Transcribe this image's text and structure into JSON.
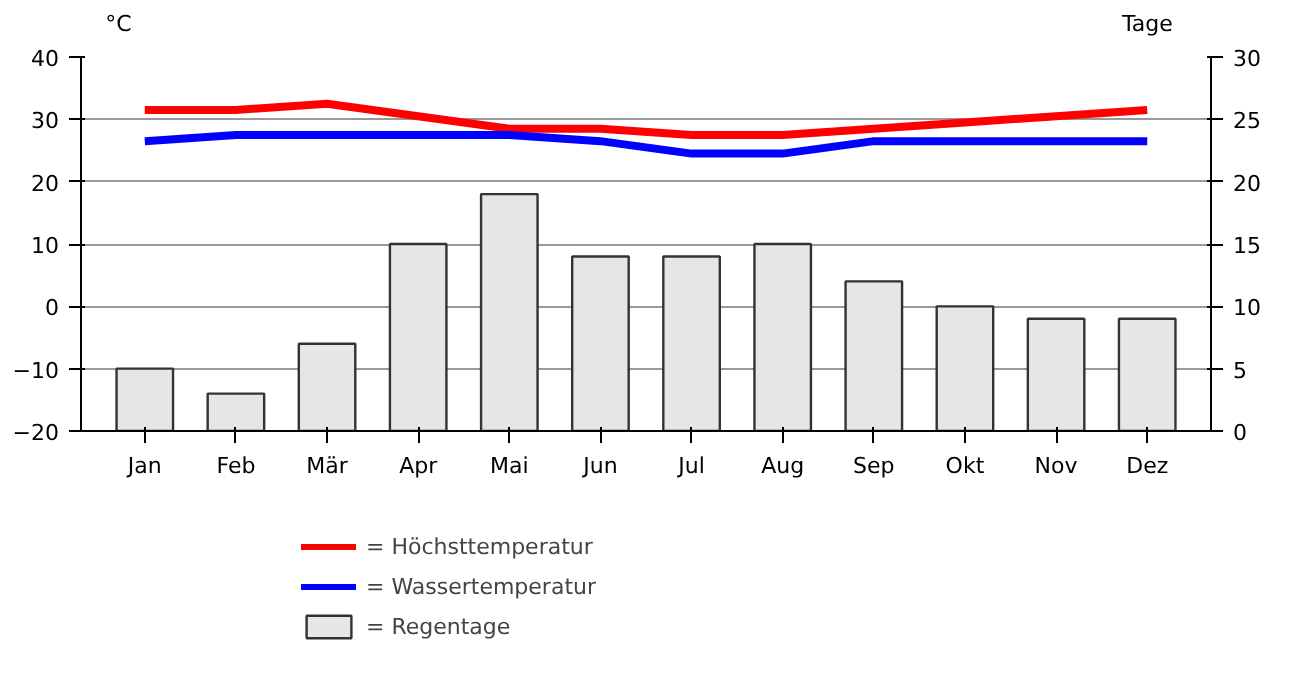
{
  "chart_data": {
    "type": "bar",
    "ylabel": "°C",
    "y2label": "Tage",
    "categories": [
      "Jan",
      "Feb",
      "Mär",
      "Apr",
      "Mai",
      "Jun",
      "Jul",
      "Aug",
      "Sep",
      "Okt",
      "Nov",
      "Dez"
    ],
    "series": [
      {
        "name": "= Höchsttemperatur",
        "type": "line",
        "color": "#ff0000",
        "values": [
          31.5,
          31.5,
          32.5,
          30.5,
          28.5,
          28.5,
          27.5,
          27.5,
          28.5,
          29.5,
          30.5,
          31.5
        ]
      },
      {
        "name": "= Wassertemperatur",
        "type": "line",
        "color": "#0000ff",
        "values": [
          26.5,
          27.5,
          27.5,
          27.5,
          27.5,
          26.5,
          24.5,
          24.5,
          26.5,
          26.5,
          26.5,
          26.5
        ]
      },
      {
        "name": "= Regentage",
        "axis": "y2",
        "color": "#e6e6e6",
        "values": [
          5,
          3,
          7,
          15,
          19,
          14,
          14,
          15,
          12,
          10,
          9,
          9
        ]
      }
    ],
    "ylim": [
      -20,
      40
    ],
    "yticks": [
      -20,
      -10,
      0,
      10,
      20,
      30,
      40
    ],
    "y2lim": [
      0,
      30
    ],
    "y2ticks": [
      0,
      5,
      10,
      15,
      20,
      25,
      30
    ],
    "grid": "y",
    "legend": "bottom left"
  }
}
